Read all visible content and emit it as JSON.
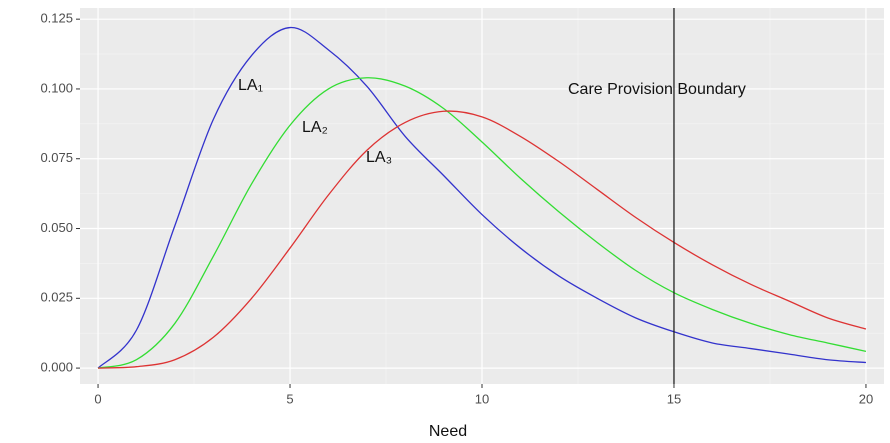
{
  "chart_data": {
    "type": "line",
    "x_label": "Need",
    "x": [
      0,
      1,
      2,
      3,
      4,
      5,
      6,
      7,
      8,
      9,
      10,
      11,
      12,
      13,
      14,
      15,
      16,
      17,
      18,
      19,
      20
    ],
    "series": [
      {
        "name": "LA₁",
        "color": "#3333cc",
        "values": [
          0,
          0.0136,
          0.051,
          0.089,
          0.112,
          0.122,
          0.114,
          0.101,
          0.083,
          0.069,
          0.055,
          0.043,
          0.033,
          0.025,
          0.018,
          0.013,
          0.009,
          0.007,
          0.005,
          0.003,
          0.002
        ]
      },
      {
        "name": "LA₂",
        "color": "#33dd33",
        "values": [
          0,
          0.003,
          0.016,
          0.04,
          0.066,
          0.087,
          0.1,
          0.104,
          0.101,
          0.093,
          0.081,
          0.068,
          0.056,
          0.045,
          0.035,
          0.027,
          0.021,
          0.016,
          0.012,
          0.009,
          0.006
        ]
      },
      {
        "name": "LA₃",
        "color": "#dd3333",
        "values": [
          0,
          0.0005,
          0.003,
          0.011,
          0.025,
          0.043,
          0.062,
          0.078,
          0.088,
          0.092,
          0.09,
          0.083,
          0.074,
          0.064,
          0.054,
          0.045,
          0.037,
          0.03,
          0.024,
          0.018,
          0.014
        ]
      }
    ],
    "boundary": {
      "label": "Care Provision Boundary",
      "x": 15
    },
    "xlim": [
      -0.47,
      20.47
    ],
    "ylim": [
      -0.0057,
      0.129
    ],
    "xticks": [
      0,
      5,
      10,
      15,
      20
    ],
    "yticks": [
      {
        "value": 0,
        "label": "0.000"
      },
      {
        "value": 0.025,
        "label": "0.025"
      },
      {
        "value": 0.05,
        "label": "0.050"
      },
      {
        "value": 0.075,
        "label": "0.075"
      },
      {
        "value": 0.1,
        "label": "0.100"
      },
      {
        "value": 0.125,
        "label": "0.125"
      }
    ],
    "grid": true
  }
}
